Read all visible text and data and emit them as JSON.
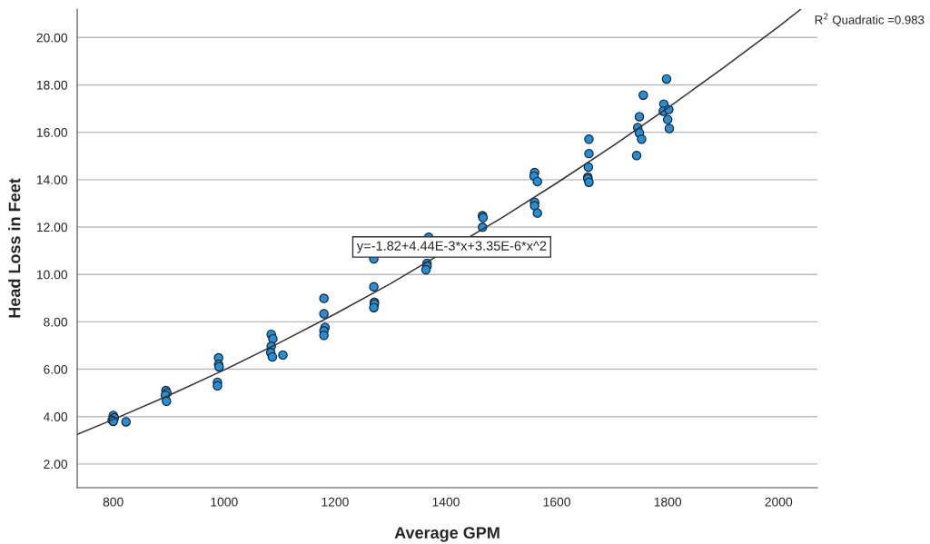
{
  "chart_data": {
    "type": "scatter",
    "xlabel": "Average GPM",
    "ylabel": "Head Loss in Feet",
    "xlim": [
      735,
      2070
    ],
    "ylim": [
      1.0,
      21.2
    ],
    "xticks": [
      800,
      1000,
      1200,
      1400,
      1600,
      1800,
      2000
    ],
    "yticks": [
      {
        "value": 2,
        "label": "2.00"
      },
      {
        "value": 4,
        "label": "4.00"
      },
      {
        "value": 6,
        "label": "6.00"
      },
      {
        "value": 8,
        "label": "8.00"
      },
      {
        "value": 10,
        "label": "10.00"
      },
      {
        "value": 12,
        "label": "12.00"
      },
      {
        "value": 14,
        "label": "14.00"
      },
      {
        "value": 16,
        "label": "16.00"
      },
      {
        "value": 18,
        "label": "18.00"
      },
      {
        "value": 20,
        "label": "20.00"
      }
    ],
    "grid": "y",
    "marker": "circle",
    "legend": false,
    "annotations": [
      "y=-1.82+4.44E-3*x+3.35E-6*x^2",
      "R$^{2}$ Quadratic =0.983"
    ],
    "series": [
      {
        "color": "#1e90e0",
        "x": [
          800,
          802,
          798,
          800,
          823,
          895,
          897,
          894,
          896,
          990,
          990,
          991,
          988,
          988,
          1085,
          1088,
          1085,
          1084,
          1087,
          1106,
          1180,
          1180,
          1182,
          1180,
          1180,
          1270,
          1270,
          1271,
          1271,
          1270,
          1369,
          1366,
          1366,
          1364,
          1466,
          1467,
          1466,
          1560,
          1559,
          1565,
          1560,
          1560,
          1565,
          1658,
          1658,
          1657,
          1656,
          1656,
          1658,
          1756,
          1749,
          1746,
          1749,
          1753,
          1744,
          1798,
          1793,
          1792,
          1802,
          1800,
          1803
        ],
        "values": [
          4.05,
          3.95,
          3.85,
          3.8,
          3.78,
          5.1,
          5.0,
          4.9,
          4.65,
          6.48,
          6.2,
          6.1,
          5.45,
          5.3,
          7.47,
          7.28,
          6.97,
          6.7,
          6.52,
          6.6,
          8.99,
          8.34,
          7.77,
          7.62,
          7.43,
          10.66,
          9.48,
          8.83,
          8.76,
          8.6,
          11.57,
          10.47,
          10.35,
          10.2,
          12.48,
          12.4,
          11.99,
          14.3,
          14.15,
          13.92,
          13.05,
          12.9,
          12.59,
          15.71,
          15.1,
          14.53,
          14.11,
          14.04,
          13.89,
          17.57,
          16.66,
          16.2,
          15.97,
          15.71,
          15.02,
          18.25,
          17.19,
          16.89,
          16.96,
          16.54,
          16.16
        ]
      },
      {
        "type": "line",
        "color": "#333333",
        "marker": "none",
        "x": [
          735,
          800,
          900,
          1000,
          1100,
          1200,
          1300,
          1500,
          1600,
          1700,
          1800,
          1900,
          2000,
          2040
        ],
        "values": [
          3.25,
          3.88,
          4.89,
          5.97,
          7.12,
          8.33,
          9.61,
          12.38,
          13.86,
          15.41,
          17.03,
          18.71,
          20.46,
          21.19
        ]
      }
    ]
  }
}
